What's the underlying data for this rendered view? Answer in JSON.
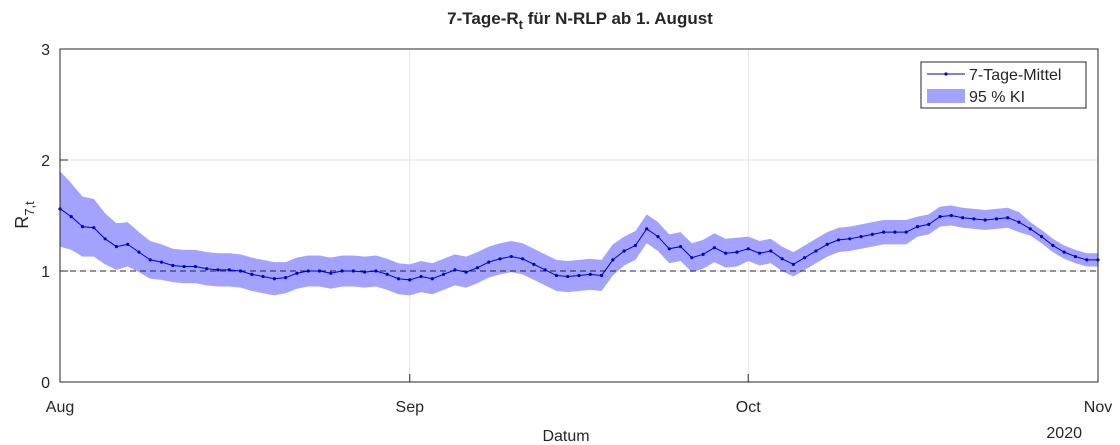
{
  "chart_data": {
    "type": "line",
    "title_main": "7-Tage-R",
    "title_sub": "t",
    "title_rest": " für N-RLP ab 1. August",
    "x_label": "Datum",
    "x_year_label": "2020",
    "y_label_main": "R",
    "y_label_sub": "7,t",
    "x": [
      0,
      1,
      2,
      3,
      4,
      5,
      6,
      7,
      8,
      9,
      10,
      11,
      12,
      13,
      14,
      15,
      16,
      17,
      18,
      19,
      20,
      21,
      22,
      23,
      24,
      25,
      26,
      27,
      28,
      29,
      30,
      31,
      32,
      33,
      34,
      35,
      36,
      37,
      38,
      39,
      40,
      41,
      42,
      43,
      44,
      45,
      46,
      47,
      48,
      49,
      50,
      51,
      52,
      53,
      54,
      55,
      56,
      57,
      58,
      59,
      60,
      61,
      62,
      63,
      64,
      65,
      66,
      67,
      68,
      69,
      70,
      71,
      72,
      73,
      74,
      75,
      76,
      77,
      78,
      79,
      80,
      81,
      82,
      83,
      84,
      85,
      86,
      87,
      88,
      89,
      90,
      91,
      92
    ],
    "series": [
      {
        "name": "7-Tage-Mittel",
        "color": "#0000cc",
        "values": [
          1.56,
          1.49,
          1.4,
          1.39,
          1.29,
          1.22,
          1.24,
          1.17,
          1.1,
          1.08,
          1.05,
          1.04,
          1.04,
          1.02,
          1.01,
          1.01,
          1.0,
          0.97,
          0.95,
          0.93,
          0.94,
          0.98,
          1.0,
          1.0,
          0.98,
          1.0,
          1.0,
          0.99,
          1.0,
          0.97,
          0.93,
          0.92,
          0.95,
          0.93,
          0.97,
          1.01,
          0.99,
          1.03,
          1.08,
          1.11,
          1.13,
          1.11,
          1.06,
          1.01,
          0.96,
          0.95,
          0.96,
          0.97,
          0.96,
          1.1,
          1.18,
          1.23,
          1.38,
          1.31,
          1.2,
          1.22,
          1.12,
          1.15,
          1.21,
          1.16,
          1.17,
          1.2,
          1.16,
          1.18,
          1.11,
          1.06,
          1.12,
          1.18,
          1.24,
          1.28,
          1.29,
          1.31,
          1.33,
          1.35,
          1.35,
          1.35,
          1.4,
          1.42,
          1.49,
          1.5,
          1.48,
          1.47,
          1.46,
          1.47,
          1.48,
          1.44,
          1.38,
          1.31,
          1.23,
          1.17,
          1.13,
          1.1,
          1.1
        ]
      }
    ],
    "band": {
      "name": "95 % KI",
      "color": "#a3a3ff",
      "upper": [
        1.9,
        1.79,
        1.67,
        1.65,
        1.52,
        1.43,
        1.44,
        1.35,
        1.27,
        1.24,
        1.2,
        1.19,
        1.19,
        1.17,
        1.16,
        1.16,
        1.15,
        1.12,
        1.1,
        1.08,
        1.08,
        1.12,
        1.14,
        1.14,
        1.12,
        1.14,
        1.14,
        1.13,
        1.14,
        1.11,
        1.07,
        1.06,
        1.09,
        1.07,
        1.11,
        1.15,
        1.13,
        1.17,
        1.22,
        1.25,
        1.27,
        1.25,
        1.2,
        1.15,
        1.1,
        1.09,
        1.1,
        1.11,
        1.1,
        1.24,
        1.31,
        1.36,
        1.51,
        1.44,
        1.33,
        1.35,
        1.25,
        1.28,
        1.34,
        1.29,
        1.3,
        1.31,
        1.27,
        1.29,
        1.22,
        1.17,
        1.23,
        1.29,
        1.35,
        1.39,
        1.4,
        1.42,
        1.44,
        1.46,
        1.46,
        1.46,
        1.49,
        1.51,
        1.58,
        1.59,
        1.57,
        1.56,
        1.55,
        1.56,
        1.57,
        1.53,
        1.44,
        1.37,
        1.29,
        1.23,
        1.19,
        1.16,
        1.16
      ],
      "lower": [
        1.22,
        1.19,
        1.13,
        1.13,
        1.06,
        1.01,
        1.04,
        0.99,
        0.93,
        0.92,
        0.9,
        0.89,
        0.89,
        0.87,
        0.86,
        0.86,
        0.85,
        0.82,
        0.8,
        0.78,
        0.8,
        0.84,
        0.86,
        0.86,
        0.84,
        0.86,
        0.86,
        0.85,
        0.86,
        0.83,
        0.79,
        0.78,
        0.81,
        0.79,
        0.83,
        0.87,
        0.85,
        0.89,
        0.94,
        0.97,
        0.99,
        0.97,
        0.92,
        0.87,
        0.82,
        0.81,
        0.82,
        0.83,
        0.82,
        0.96,
        1.05,
        1.1,
        1.25,
        1.18,
        1.07,
        1.09,
        0.99,
        1.02,
        1.08,
        1.03,
        1.04,
        1.09,
        1.05,
        1.07,
        1.0,
        0.95,
        1.01,
        1.07,
        1.13,
        1.17,
        1.18,
        1.2,
        1.22,
        1.24,
        1.24,
        1.24,
        1.31,
        1.33,
        1.4,
        1.41,
        1.39,
        1.38,
        1.37,
        1.38,
        1.39,
        1.35,
        1.32,
        1.25,
        1.17,
        1.11,
        1.07,
        1.04,
        1.04
      ]
    },
    "reference_line": 1,
    "xlim": [
      0,
      92
    ],
    "xticks": [
      {
        "value": 0,
        "label": "Aug"
      },
      {
        "value": 31,
        "label": "Sep"
      },
      {
        "value": 61,
        "label": "Oct"
      },
      {
        "value": 92,
        "label": "Nov"
      }
    ],
    "ylim": [
      0,
      3
    ],
    "yticks": [
      0,
      1,
      2,
      3
    ],
    "grid": true,
    "legend": "upper right"
  }
}
